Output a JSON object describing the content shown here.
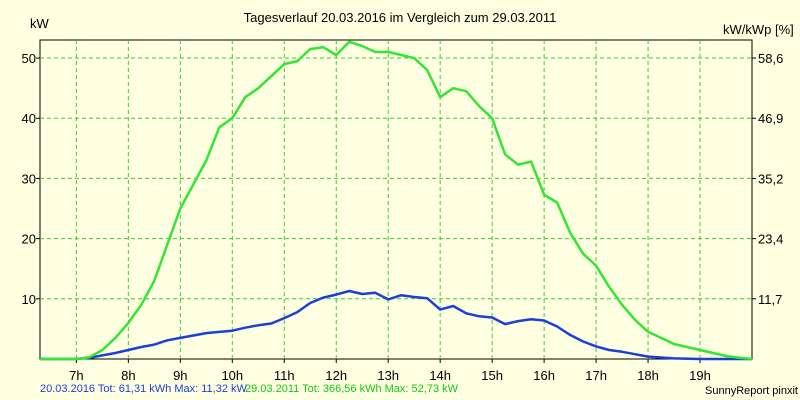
{
  "chart_data": {
    "type": "line",
    "title": "Tagesverlauf 20.03.2016 im Vergleich zum 29.03.2011",
    "ylabel_left": "kW",
    "ylabel_right": "kW/kWp [%]",
    "ylim": [
      0,
      53
    ],
    "yticks_left": [
      "10",
      "20",
      "30",
      "40",
      "50"
    ],
    "yticks_right": [
      "11,7",
      "23,4",
      "35,2",
      "46,9",
      "58,6"
    ],
    "xlim": [
      6.3,
      20.0
    ],
    "xticks": [
      "7h",
      "8h",
      "9h",
      "10h",
      "11h",
      "12h",
      "13h",
      "14h",
      "15h",
      "16h",
      "17h",
      "18h",
      "19h"
    ],
    "grid": true,
    "series": [
      {
        "name": "20.03.2016",
        "legend": "20.03.2016 Tot: 61,31 kWh Max: 11,32 kW",
        "color": "#1c3fd6",
        "x": [
          6.3,
          7.0,
          7.25,
          7.5,
          7.75,
          8.0,
          8.25,
          8.5,
          8.75,
          9.0,
          9.25,
          9.5,
          9.75,
          10.0,
          10.25,
          10.5,
          10.75,
          11.0,
          11.25,
          11.5,
          11.75,
          12.0,
          12.25,
          12.5,
          12.75,
          13.0,
          13.25,
          13.5,
          13.75,
          14.0,
          14.25,
          14.5,
          14.75,
          15.0,
          15.25,
          15.5,
          15.75,
          16.0,
          16.25,
          16.5,
          16.75,
          17.0,
          17.25,
          17.5,
          17.75,
          18.0,
          18.5,
          19.0,
          20.0
        ],
        "values": [
          0,
          0,
          0.2,
          0.6,
          1.0,
          1.5,
          2.0,
          2.4,
          3.1,
          3.5,
          3.9,
          4.3,
          4.5,
          4.7,
          5.2,
          5.6,
          5.9,
          6.8,
          7.8,
          9.3,
          10.2,
          10.7,
          11.3,
          10.8,
          11.0,
          9.9,
          10.6,
          10.3,
          10.1,
          8.2,
          8.8,
          7.6,
          7.1,
          6.9,
          5.8,
          6.3,
          6.6,
          6.4,
          5.4,
          4.0,
          2.9,
          2.1,
          1.5,
          1.2,
          0.8,
          0.4,
          0.1,
          0,
          0
        ]
      },
      {
        "name": "29.03.2011",
        "legend": "29.03.2011 Tot: 366,56 kWh Max: 52,73 kW",
        "color": "#32e632",
        "x": [
          6.3,
          7.0,
          7.25,
          7.5,
          7.75,
          8.0,
          8.25,
          8.5,
          8.75,
          9.0,
          9.25,
          9.5,
          9.75,
          10.0,
          10.25,
          10.5,
          10.75,
          11.0,
          11.25,
          11.5,
          11.75,
          12.0,
          12.25,
          12.5,
          12.75,
          13.0,
          13.25,
          13.5,
          13.75,
          14.0,
          14.25,
          14.5,
          14.75,
          15.0,
          15.25,
          15.5,
          15.75,
          16.0,
          16.25,
          16.5,
          16.75,
          17.0,
          17.25,
          17.5,
          17.75,
          18.0,
          18.25,
          18.5,
          18.75,
          19.0,
          19.25,
          19.5,
          19.75,
          20.0
        ],
        "values": [
          0,
          0,
          0.3,
          1.5,
          3.5,
          6.0,
          9.0,
          13.0,
          19.0,
          25.0,
          29.0,
          33.0,
          38.5,
          40.0,
          43.5,
          45.0,
          47.0,
          49.0,
          49.5,
          51.5,
          51.8,
          50.5,
          52.7,
          52.0,
          51.0,
          51.0,
          50.5,
          50.0,
          48.0,
          43.5,
          45.0,
          44.5,
          42.0,
          40.0,
          34.0,
          32.3,
          32.8,
          27.3,
          26.0,
          21.0,
          17.5,
          15.5,
          12.0,
          9.0,
          6.5,
          4.5,
          3.5,
          2.5,
          2.0,
          1.5,
          1.0,
          0.5,
          0.2,
          0
        ]
      }
    ]
  },
  "footer": {
    "legend1": "20.03.2016 Tot: 61,31 kWh Max: 11,32 kW",
    "legend2": "29.03.2011 Tot: 366,56 kWh Max: 52,73 kW",
    "credit": "SunnyReport pinxit"
  }
}
